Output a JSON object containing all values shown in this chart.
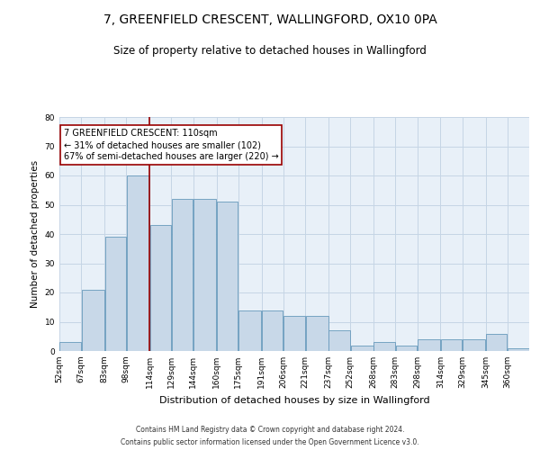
{
  "title": "7, GREENFIELD CRESCENT, WALLINGFORD, OX10 0PA",
  "subtitle": "Size of property relative to detached houses in Wallingford",
  "xlabel": "Distribution of detached houses by size in Wallingford",
  "ylabel": "Number of detached properties",
  "footnote1": "Contains HM Land Registry data © Crown copyright and database right 2024.",
  "footnote2": "Contains public sector information licensed under the Open Government Licence v3.0.",
  "annotation_line1": "7 GREENFIELD CRESCENT: 110sqm",
  "annotation_line2": "← 31% of detached houses are smaller (102)",
  "annotation_line3": "67% of semi-detached houses are larger (220) →",
  "bar_labels": [
    "52sqm",
    "67sqm",
    "83sqm",
    "98sqm",
    "114sqm",
    "129sqm",
    "144sqm",
    "160sqm",
    "175sqm",
    "191sqm",
    "206sqm",
    "221sqm",
    "237sqm",
    "252sqm",
    "268sqm",
    "283sqm",
    "298sqm",
    "314sqm",
    "329sqm",
    "345sqm",
    "360sqm"
  ],
  "bar_heights": [
    3,
    21,
    39,
    60,
    43,
    52,
    52,
    51,
    14,
    14,
    12,
    12,
    7,
    2,
    3,
    2,
    4,
    4,
    4,
    6,
    1
  ],
  "bar_color": "#c8d8e8",
  "bar_edge_color": "#6699bb",
  "bin_edges": [
    52,
    67,
    83,
    98,
    114,
    129,
    144,
    160,
    175,
    191,
    206,
    221,
    237,
    252,
    268,
    283,
    298,
    314,
    329,
    345,
    360,
    375
  ],
  "ylim": [
    0,
    80
  ],
  "yticks": [
    0,
    10,
    20,
    30,
    40,
    50,
    60,
    70,
    80
  ],
  "grid_color": "#c5d5e5",
  "background_color": "#e8f0f8",
  "title_fontsize": 10,
  "subtitle_fontsize": 8.5,
  "ylabel_fontsize": 7.5,
  "xlabel_fontsize": 8,
  "tick_fontsize": 6.5,
  "annot_fontsize": 7,
  "footnote_fontsize": 5.5
}
